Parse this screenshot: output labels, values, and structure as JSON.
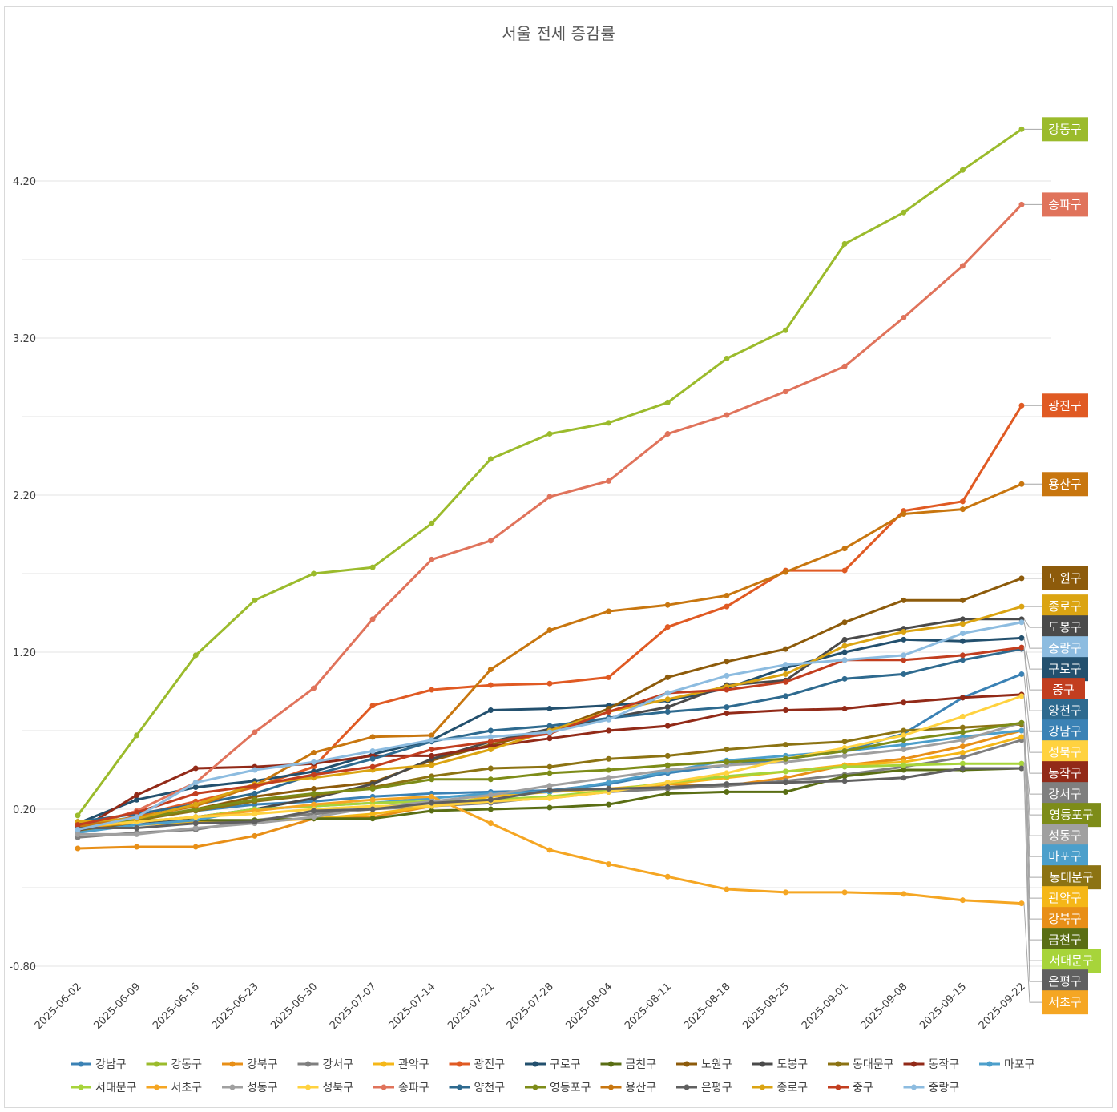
{
  "chart_data": {
    "type": "line",
    "title": "서울 전세 증감률",
    "xlabel": "",
    "ylabel": "",
    "ylim": [
      -0.8,
      5.0
    ],
    "yticks": [
      "-0.80",
      "0.20",
      "1.20",
      "2.20",
      "3.20",
      "4.20"
    ],
    "grid": true,
    "legend_position": "bottom",
    "x": [
      "2025-06-02",
      "2025-06-09",
      "2025-06-16",
      "2025-06-23",
      "2025-06-30",
      "2025-07-07",
      "2025-07-14",
      "2025-07-21",
      "2025-07-28",
      "2025-08-04",
      "2025-08-11",
      "2025-08-18",
      "2025-08-25",
      "2025-09-01",
      "2025-09-08",
      "2025-09-15",
      "2025-09-22"
    ],
    "series": [
      {
        "name": "강남구",
        "color": "#3b82b5",
        "values": [
          0.1,
          0.15,
          0.19,
          0.23,
          0.25,
          0.28,
          0.3,
          0.31,
          0.32,
          0.36,
          0.43,
          0.48,
          0.52,
          0.57,
          0.68,
          0.91,
          1.06
        ]
      },
      {
        "name": "강동구",
        "color": "#9bbb2c",
        "values": [
          0.16,
          0.67,
          1.18,
          1.53,
          1.7,
          1.74,
          2.02,
          2.43,
          2.59,
          2.66,
          2.79,
          3.07,
          3.25,
          3.8,
          4.0,
          4.27,
          4.53
        ]
      },
      {
        "name": "강북구",
        "color": "#e88f17",
        "values": [
          -0.05,
          -0.04,
          -0.04,
          0.03,
          0.14,
          0.15,
          0.22,
          0.25,
          0.27,
          0.31,
          0.36,
          0.35,
          0.4,
          0.48,
          0.52,
          0.6,
          0.7
        ]
      },
      {
        "name": "강서구",
        "color": "#7f7f7f",
        "values": [
          0.02,
          0.05,
          0.07,
          0.13,
          0.17,
          0.2,
          0.22,
          0.24,
          0.28,
          0.31,
          0.33,
          0.35,
          0.38,
          0.42,
          0.47,
          0.53,
          0.64
        ]
      },
      {
        "name": "관악구",
        "color": "#f5b718",
        "values": [
          0.08,
          0.1,
          0.12,
          0.12,
          0.14,
          0.17,
          0.22,
          0.28,
          0.31,
          0.33,
          0.36,
          0.4,
          0.44,
          0.48,
          0.5,
          0.56,
          0.66
        ]
      },
      {
        "name": "광진구",
        "color": "#e05a23",
        "values": [
          0.05,
          0.16,
          0.25,
          0.34,
          0.47,
          0.86,
          0.96,
          0.99,
          1.0,
          1.04,
          1.36,
          1.49,
          1.72,
          1.72,
          2.1,
          2.16,
          2.77
        ]
      },
      {
        "name": "구로구",
        "color": "#23506e",
        "values": [
          0.11,
          0.26,
          0.34,
          0.38,
          0.44,
          0.55,
          0.64,
          0.83,
          0.84,
          0.86,
          0.89,
          0.97,
          1.1,
          1.2,
          1.28,
          1.27,
          1.29
        ]
      },
      {
        "name": "금천구",
        "color": "#5a6e14",
        "values": [
          0.07,
          0.13,
          0.13,
          0.13,
          0.14,
          0.14,
          0.19,
          0.2,
          0.21,
          0.23,
          0.3,
          0.31,
          0.31,
          0.41,
          0.45,
          0.45,
          0.46
        ]
      },
      {
        "name": "노원구",
        "color": "#8d5b0b",
        "values": [
          0.08,
          0.13,
          0.2,
          0.28,
          0.33,
          0.37,
          0.51,
          0.61,
          0.7,
          0.84,
          1.04,
          1.14,
          1.22,
          1.39,
          1.53,
          1.53,
          1.67
        ]
      },
      {
        "name": "도봉구",
        "color": "#4a4a4a",
        "values": [
          0.06,
          0.1,
          0.15,
          0.2,
          0.27,
          0.36,
          0.52,
          0.63,
          0.71,
          0.78,
          0.85,
          0.99,
          1.02,
          1.28,
          1.35,
          1.41,
          1.41
        ]
      },
      {
        "name": "동대문구",
        "color": "#8c7313",
        "values": [
          0.05,
          0.13,
          0.19,
          0.25,
          0.29,
          0.34,
          0.41,
          0.46,
          0.47,
          0.52,
          0.54,
          0.58,
          0.61,
          0.63,
          0.7,
          0.72,
          0.74
        ]
      },
      {
        "name": "동작구",
        "color": "#922a18",
        "values": [
          0.06,
          0.29,
          0.46,
          0.47,
          0.49,
          0.54,
          0.54,
          0.6,
          0.65,
          0.7,
          0.73,
          0.81,
          0.83,
          0.84,
          0.88,
          0.91,
          0.93
        ]
      },
      {
        "name": "마포구",
        "color": "#4c9fcb",
        "values": [
          0.05,
          0.1,
          0.13,
          0.2,
          0.22,
          0.24,
          0.27,
          0.3,
          0.31,
          0.37,
          0.44,
          0.51,
          0.54,
          0.57,
          0.61,
          0.66,
          0.7
        ]
      },
      {
        "name": "서대문구",
        "color": "#a7d43a",
        "values": [
          0.1,
          0.12,
          0.15,
          0.2,
          0.22,
          0.24,
          0.25,
          0.26,
          0.28,
          0.32,
          0.37,
          0.41,
          0.44,
          0.47,
          0.48,
          0.49,
          0.49
        ]
      },
      {
        "name": "서초구",
        "color": "#f5a623",
        "values": [
          0.08,
          0.12,
          0.15,
          0.19,
          0.23,
          0.26,
          0.28,
          0.11,
          -0.06,
          -0.15,
          -0.23,
          -0.31,
          -0.33,
          -0.33,
          -0.34,
          -0.38,
          -0.4
        ]
      },
      {
        "name": "성동구",
        "color": "#a0a0a0",
        "values": [
          0.04,
          0.04,
          0.08,
          0.11,
          0.15,
          0.21,
          0.25,
          0.29,
          0.35,
          0.4,
          0.45,
          0.48,
          0.5,
          0.54,
          0.58,
          0.64,
          0.75
        ]
      },
      {
        "name": "성북구",
        "color": "#ffd23f",
        "values": [
          0.09,
          0.12,
          0.15,
          0.17,
          0.2,
          0.22,
          0.22,
          0.25,
          0.27,
          0.31,
          0.37,
          0.43,
          0.52,
          0.59,
          0.67,
          0.79,
          0.92
        ]
      },
      {
        "name": "송파구",
        "color": "#e0735b",
        "values": [
          0.07,
          0.19,
          0.37,
          0.69,
          0.97,
          1.41,
          1.79,
          1.91,
          2.19,
          2.29,
          2.59,
          2.71,
          2.86,
          3.02,
          3.33,
          3.66,
          4.05
        ]
      },
      {
        "name": "양천구",
        "color": "#2e6a8f",
        "values": [
          0.12,
          0.17,
          0.23,
          0.3,
          0.42,
          0.52,
          0.63,
          0.7,
          0.73,
          0.78,
          0.82,
          0.85,
          0.92,
          1.03,
          1.06,
          1.15,
          1.22
        ]
      },
      {
        "name": "영등포구",
        "color": "#7d8c18",
        "values": [
          0.09,
          0.14,
          0.2,
          0.26,
          0.3,
          0.33,
          0.39,
          0.39,
          0.43,
          0.45,
          0.48,
          0.5,
          0.52,
          0.57,
          0.64,
          0.69,
          0.75
        ]
      },
      {
        "name": "용산구",
        "color": "#c8760f",
        "values": [
          0.09,
          0.15,
          0.22,
          0.35,
          0.56,
          0.66,
          0.67,
          1.09,
          1.34,
          1.46,
          1.5,
          1.56,
          1.71,
          1.86,
          2.08,
          2.11,
          2.27
        ]
      },
      {
        "name": "은평구",
        "color": "#606060",
        "values": [
          0.08,
          0.08,
          0.11,
          0.12,
          0.19,
          0.2,
          0.24,
          0.26,
          0.32,
          0.33,
          0.34,
          0.36,
          0.37,
          0.38,
          0.4,
          0.46,
          0.46
        ]
      },
      {
        "name": "종로구",
        "color": "#dba412",
        "values": [
          0.12,
          0.14,
          0.23,
          0.36,
          0.4,
          0.45,
          0.48,
          0.58,
          0.7,
          0.82,
          0.9,
          0.98,
          1.06,
          1.24,
          1.33,
          1.38,
          1.49
        ]
      },
      {
        "name": "중구",
        "color": "#c23e1f",
        "values": [
          0.1,
          0.18,
          0.3,
          0.35,
          0.42,
          0.47,
          0.58,
          0.63,
          0.68,
          0.82,
          0.94,
          0.96,
          1.01,
          1.15,
          1.15,
          1.18,
          1.23
        ]
      },
      {
        "name": "중랑구",
        "color": "#8dbce0",
        "values": [
          0.07,
          0.15,
          0.37,
          0.45,
          0.5,
          0.57,
          0.64,
          0.66,
          0.69,
          0.77,
          0.94,
          1.05,
          1.12,
          1.15,
          1.18,
          1.32,
          1.39
        ]
      }
    ],
    "end_labels": [
      {
        "series": "강동구",
        "label": "강동구"
      },
      {
        "series": "송파구",
        "label": "송파구"
      },
      {
        "series": "광진구",
        "label": "광진구"
      },
      {
        "series": "용산구",
        "label": "용산구"
      },
      {
        "series": "노원구",
        "label": "노원구"
      },
      {
        "series": "종로구",
        "label": "종로구"
      },
      {
        "series": "도봉구",
        "label": "도봉구"
      },
      {
        "series": "중랑구",
        "label": "중랑구"
      },
      {
        "series": "구로구",
        "label": "구로구"
      },
      {
        "series": "중구",
        "label": "중구"
      },
      {
        "series": "양천구",
        "label": "양천구"
      },
      {
        "series": "강남구",
        "label": "강남구"
      },
      {
        "series": "성북구",
        "label": "성북구"
      },
      {
        "series": "동작구",
        "label": "동작구"
      },
      {
        "series": "강서구",
        "label": "강서구"
      },
      {
        "series": "영등포구",
        "label": "영등포구"
      },
      {
        "series": "성동구",
        "label": "성동구"
      },
      {
        "series": "마포구",
        "label": "마포구"
      },
      {
        "series": "동대문구",
        "label": "동대문구"
      },
      {
        "series": "관악구",
        "label": "관악구"
      },
      {
        "series": "강북구",
        "label": "강북구"
      },
      {
        "series": "금천구",
        "label": "금천구"
      },
      {
        "series": "서대문구",
        "label": "서대문구"
      },
      {
        "series": "은평구",
        "label": "은평구"
      },
      {
        "series": "서초구",
        "label": "서초구"
      }
    ]
  }
}
